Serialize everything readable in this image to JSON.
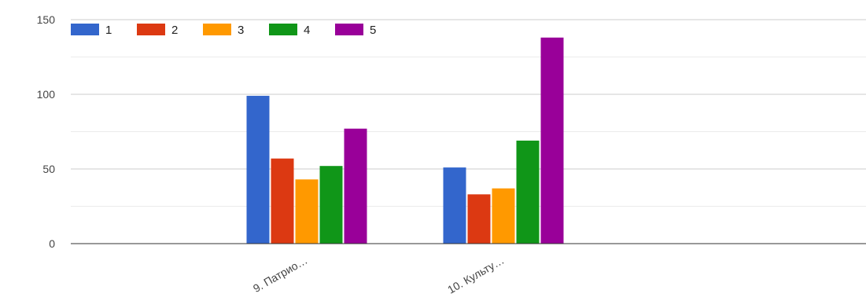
{
  "chart_data": {
    "type": "bar",
    "categories": [
      "9. Патрио…",
      "10. Культу…"
    ],
    "series": [
      {
        "name": "1",
        "color": "#3366cc",
        "values": [
          99,
          51
        ]
      },
      {
        "name": "2",
        "color": "#dc3912",
        "values": [
          57,
          33
        ]
      },
      {
        "name": "3",
        "color": "#ff9900",
        "values": [
          43,
          37
        ]
      },
      {
        "name": "4",
        "color": "#109618",
        "values": [
          52,
          69
        ]
      },
      {
        "name": "5",
        "color": "#990099",
        "values": [
          77,
          138
        ]
      }
    ],
    "title": "",
    "xlabel": "",
    "ylabel": "",
    "ylim": [
      0,
      150
    ],
    "yticks": [
      0,
      50,
      100,
      150
    ],
    "grid": true,
    "legend_position": "top-left"
  }
}
